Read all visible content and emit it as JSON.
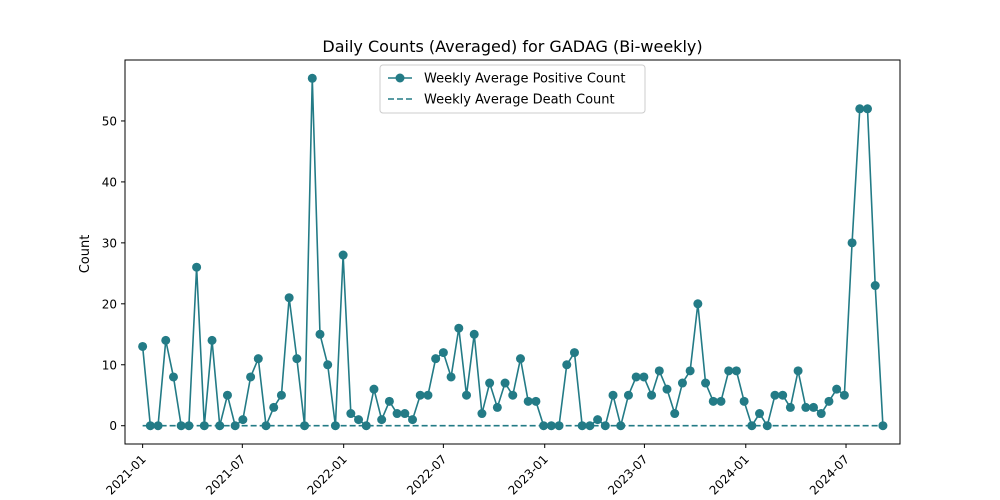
{
  "chart_data": {
    "type": "line",
    "title": "Daily Counts (Averaged) for GADAG (Bi-weekly)",
    "xlabel": "",
    "ylabel": "Count",
    "x_range": [
      "2020-11-30",
      "2024-10-07"
    ],
    "ylim": [
      -3,
      60
    ],
    "x_ticks": [
      {
        "date": "2021-01-01",
        "label": "2021-01"
      },
      {
        "date": "2021-07-01",
        "label": "2021-07"
      },
      {
        "date": "2022-01-01",
        "label": "2022-01"
      },
      {
        "date": "2022-07-01",
        "label": "2022-07"
      },
      {
        "date": "2023-01-01",
        "label": "2023-01"
      },
      {
        "date": "2023-07-01",
        "label": "2023-07"
      },
      {
        "date": "2024-01-01",
        "label": "2024-01"
      },
      {
        "date": "2024-07-01",
        "label": "2024-07"
      }
    ],
    "y_ticks": [
      0,
      10,
      20,
      30,
      40,
      50
    ],
    "grid": false,
    "legend_position": "top-center",
    "start_date": "2021-01-01",
    "interval_days": 14,
    "series": [
      {
        "name": "Weekly Average Positive Count",
        "color": "#237b86",
        "style": "solid-with-markers",
        "values": [
          13,
          0,
          0,
          14,
          8,
          0,
          0,
          26,
          0,
          14,
          0,
          5,
          0,
          1,
          8,
          11,
          0,
          3,
          5,
          21,
          11,
          0,
          57,
          15,
          10,
          0,
          28,
          2,
          1,
          0,
          6,
          1,
          4,
          2,
          2,
          1,
          5,
          5,
          11,
          12,
          8,
          16,
          5,
          15,
          2,
          7,
          3,
          7,
          5,
          11,
          4,
          4,
          0,
          0,
          0,
          10,
          12,
          0,
          0,
          1,
          0,
          5,
          0,
          5,
          8,
          8,
          5,
          9,
          6,
          2,
          7,
          9,
          20,
          7,
          4,
          4,
          9,
          9,
          4,
          0,
          2,
          0,
          5,
          5,
          3,
          9,
          3,
          3,
          2,
          4,
          6,
          5,
          30,
          52,
          52,
          23,
          0
        ]
      },
      {
        "name": "Weekly Average Death Count",
        "color": "#237b86",
        "style": "dashed",
        "values": [
          0,
          0,
          0,
          0,
          0,
          0,
          0,
          0,
          0,
          0,
          0,
          0,
          0,
          0,
          0,
          0,
          0,
          0,
          0,
          0,
          0,
          0,
          0,
          0,
          0,
          0,
          0,
          0,
          0,
          0,
          0,
          0,
          0,
          0,
          0,
          0,
          0,
          0,
          0,
          0,
          0,
          0,
          0,
          0,
          0,
          0,
          0,
          0,
          0,
          0,
          0,
          0,
          0,
          0,
          0,
          0,
          0,
          0,
          0,
          0,
          0,
          0,
          0,
          0,
          0,
          0,
          0,
          0,
          0,
          0,
          0,
          0,
          0,
          0,
          0,
          0,
          0,
          0,
          0,
          0,
          0,
          0,
          0,
          0,
          0,
          0,
          0,
          0,
          0,
          0,
          0,
          0,
          0,
          0,
          0,
          0,
          0
        ]
      }
    ]
  }
}
